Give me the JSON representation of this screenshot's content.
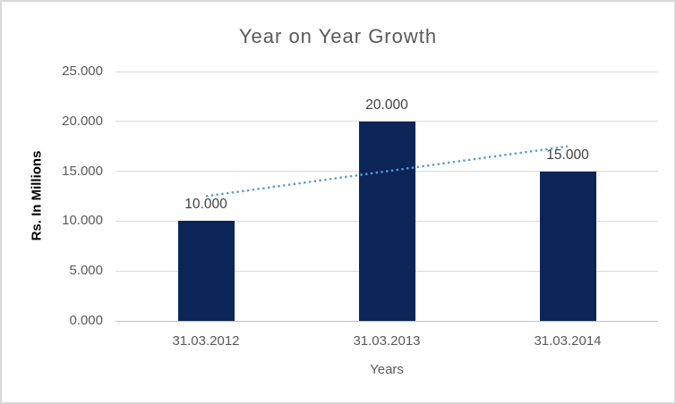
{
  "chart_data": {
    "type": "bar",
    "title": "Year on Year Growth",
    "xlabel": "Years",
    "ylabel": "Rs. In Millions",
    "categories": [
      "31.03.2012",
      "31.03.2013",
      "31.03.2014"
    ],
    "values": [
      10,
      20,
      15
    ],
    "data_labels": [
      "10.000",
      "20.000",
      "15.000"
    ],
    "ylim": [
      0,
      25
    ],
    "yticks": [
      {
        "value": 0,
        "label": "0.000"
      },
      {
        "value": 5,
        "label": "5.000"
      },
      {
        "value": 10,
        "label": "10.000"
      },
      {
        "value": 15,
        "label": "15.000"
      },
      {
        "value": 20,
        "label": "20.000"
      },
      {
        "value": 25,
        "label": "25.000"
      }
    ],
    "grid": true,
    "legend": "none",
    "bar_color": "#0B2559",
    "trendline": {
      "type": "linear",
      "style": "dotted",
      "color": "#5B9BD5",
      "x": [
        1,
        3
      ],
      "values": [
        12.5,
        17.5
      ]
    },
    "colors": {
      "title_text": "#595959",
      "tick_text": "#595959",
      "data_label_text": "#404040",
      "axis_title_text": "#000000",
      "x_axis_title_text": "#595959",
      "gridline": "#D9D9D9",
      "axis_line": "#BFBFBF",
      "chart_border": "#D9D9D9",
      "background": "#FFFFFF"
    }
  }
}
